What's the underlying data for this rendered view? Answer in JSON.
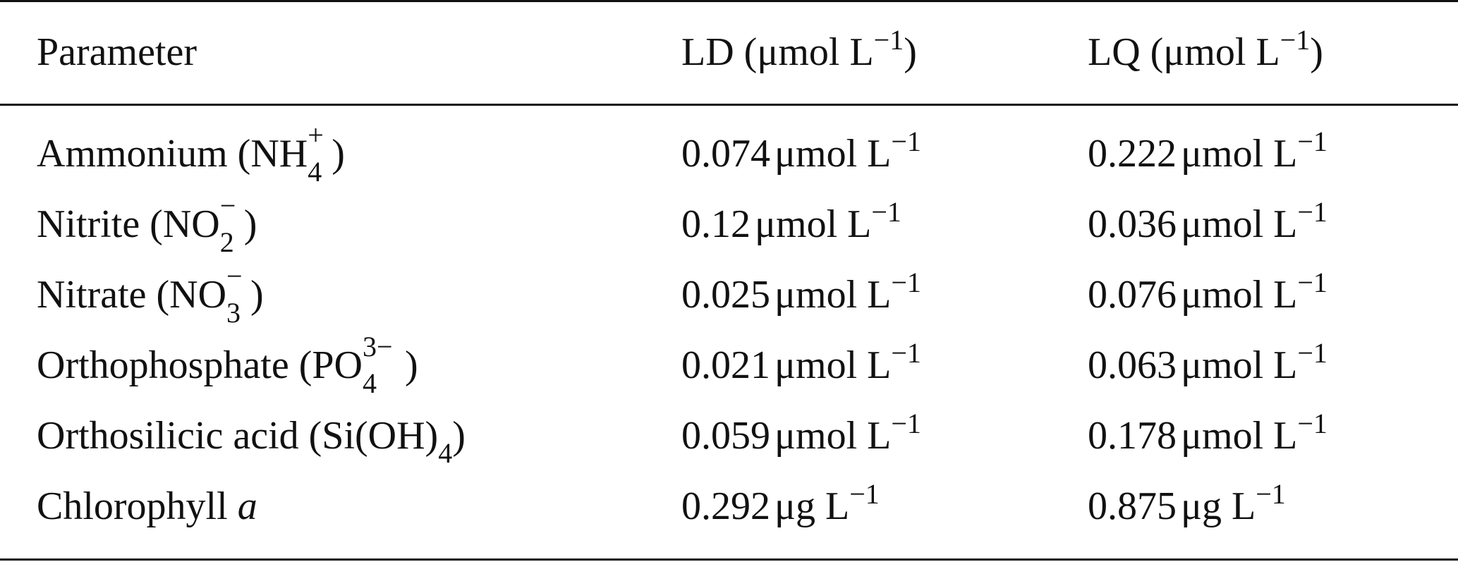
{
  "table": {
    "header": {
      "parameter": "Parameter",
      "ld": "LD (μmol L",
      "lq": "LQ (μmol L",
      "unit_exp": "−1",
      "close": ")"
    },
    "rows": [
      {
        "param_base": "Ammonium (NH",
        "param_sup": "+",
        "param_sub": "4",
        "param_close": ")",
        "ld_value": "0.074",
        "ld_unit": "μmol L",
        "lq_value": "0.222",
        "lq_unit": "μmol L",
        "exp": "−1"
      },
      {
        "param_base": "Nitrite (NO",
        "param_sup": "−",
        "param_sub": "2",
        "param_close": ")",
        "ld_value": "0.12",
        "ld_unit": "μmol L",
        "lq_value": "0.036",
        "lq_unit": "μmol L",
        "exp": "−1"
      },
      {
        "param_base": "Nitrate (NO",
        "param_sup": "−",
        "param_sub": "3",
        "param_close": ")",
        "ld_value": "0.025",
        "ld_unit": "μmol L",
        "lq_value": "0.076",
        "lq_unit": "μmol L",
        "exp": "−1"
      },
      {
        "param_base": "Orthophosphate (PO",
        "param_sup": "3−",
        "param_sub": "4",
        "param_close": ")",
        "ld_value": "0.021",
        "ld_unit": "μmol L",
        "lq_value": "0.063",
        "lq_unit": "μmol L",
        "exp": "−1"
      },
      {
        "param_base": "Orthosilicic acid (Si(OH)",
        "param_sub": "4",
        "param_close": ")",
        "ld_value": "0.059",
        "ld_unit": "μmol L",
        "lq_value": "0.178",
        "lq_unit": "μmol L",
        "exp": "−1"
      },
      {
        "param_base": "Chlorophyll ",
        "param_italic": "a",
        "ld_value": "0.292",
        "ld_unit": "μg L",
        "lq_value": "0.875",
        "lq_unit": "μg L",
        "exp": "−1"
      }
    ]
  }
}
